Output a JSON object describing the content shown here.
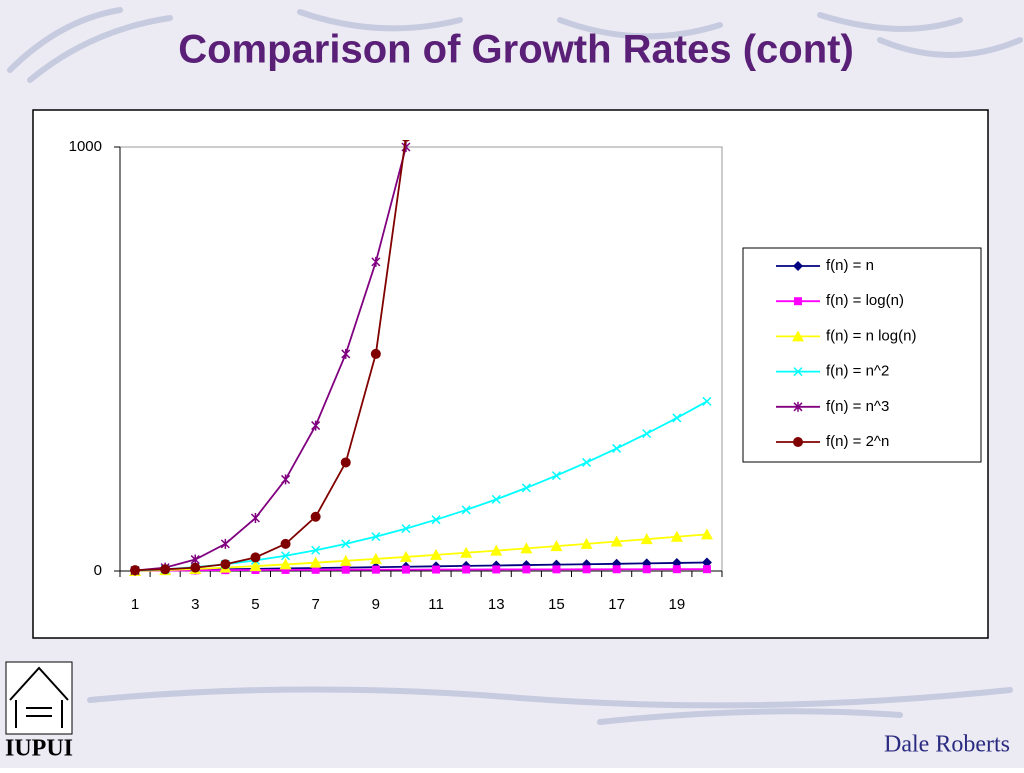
{
  "chart_data": {
    "type": "line",
    "title": "Comparison of Growth Rates (cont)",
    "categories": [
      1,
      null,
      3,
      null,
      5,
      null,
      7,
      null,
      9,
      null,
      11,
      null,
      13,
      null,
      15,
      null,
      17,
      null,
      19,
      null
    ],
    "ylim": [
      0,
      1000
    ],
    "yticks": [
      0,
      1000
    ],
    "grid": false,
    "legend": "right",
    "series": [
      {
        "name": "f(n) = n",
        "color": "#000080",
        "marker": "diamond",
        "values": [
          1,
          2,
          3,
          4,
          5,
          6,
          7,
          8,
          9,
          10,
          11,
          12,
          13,
          14,
          15,
          16,
          17,
          18,
          19,
          20
        ]
      },
      {
        "name": "f(n) = log(n)",
        "color": "#ff00ff",
        "marker": "square",
        "values": [
          0,
          1,
          1.58,
          2,
          2.32,
          2.58,
          2.81,
          3,
          3.17,
          3.32,
          3.46,
          3.58,
          3.7,
          3.81,
          3.91,
          4,
          4.09,
          4.17,
          4.25,
          4.32
        ]
      },
      {
        "name": "f(n) = n log(n)",
        "color": "#ffff00",
        "marker": "triangle",
        "values": [
          0,
          2,
          4.75,
          8,
          11.61,
          15.51,
          19.65,
          24,
          28.53,
          33.22,
          38.05,
          43.02,
          48.11,
          53.3,
          58.6,
          64,
          69.49,
          75.06,
          80.71,
          86.44
        ]
      },
      {
        "name": "f(n) = n^2",
        "color": "#00ffff",
        "marker": "x",
        "values": [
          1,
          4,
          9,
          16,
          25,
          36,
          49,
          64,
          81,
          100,
          121,
          144,
          169,
          196,
          225,
          256,
          289,
          324,
          361,
          400
        ]
      },
      {
        "name": "f(n) = n^3",
        "color": "#800080",
        "marker": "star",
        "values": [
          1,
          8,
          27,
          64,
          125,
          216,
          343,
          512,
          729,
          1000,
          null,
          null,
          null,
          null,
          null,
          null,
          null,
          null,
          null,
          null
        ]
      },
      {
        "name": "f(n) = 2^n",
        "color": "#800000",
        "marker": "circle",
        "values": [
          2,
          4,
          8,
          16,
          32,
          64,
          128,
          256,
          512,
          1024,
          null,
          null,
          null,
          null,
          null,
          null,
          null,
          null,
          null,
          null
        ]
      }
    ]
  },
  "footer": {
    "author": "Dale Roberts",
    "logo": "IUPUI"
  }
}
